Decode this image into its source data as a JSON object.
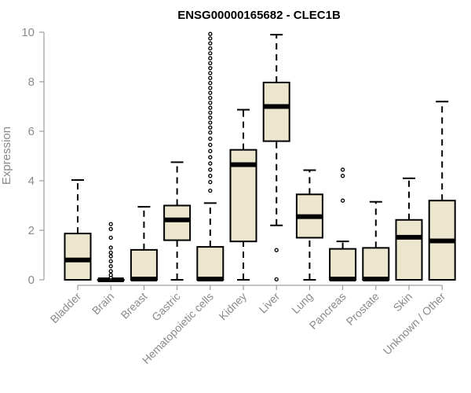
{
  "chart_data": {
    "type": "boxplot",
    "title": "ENSG00000165682 - CLEC1B",
    "xlabel": "",
    "ylabel": "Expression",
    "ylim": [
      0,
      10
    ],
    "yticks": [
      0,
      2,
      4,
      6,
      8,
      10
    ],
    "grid": false,
    "box_fill": "#ede6cf",
    "box_stroke": "#000000",
    "axis_color": "#8a8a8a",
    "categories": [
      "Bladder",
      "Brain",
      "Breast",
      "Gastric",
      "Hematopoietic cells",
      "Kidney",
      "Liver",
      "Lung",
      "Pancreas",
      "Prostate",
      "Skin",
      "Unknown / Other"
    ],
    "boxes": [
      {
        "min": 0,
        "q1": 0,
        "median": 0.8,
        "q3": 1.87,
        "max": 4.03,
        "outliers": []
      },
      {
        "min": 0,
        "q1": 0,
        "median": 0,
        "q3": 0,
        "max": 0,
        "outliers": [
          0.05,
          0.1,
          0.2,
          0.35,
          0.55,
          0.75,
          0.95,
          1.1,
          1.3,
          1.7,
          2.05,
          2.25
        ]
      },
      {
        "min": 0,
        "q1": 0,
        "median": 0.03,
        "q3": 1.21,
        "max": 2.95,
        "outliers": []
      },
      {
        "min": 0,
        "q1": 1.6,
        "median": 2.42,
        "q3": 3.0,
        "max": 4.75,
        "outliers": []
      },
      {
        "min": 0,
        "q1": 0,
        "median": 0.03,
        "q3": 1.33,
        "max": 3.1,
        "outliers": [
          3.6,
          3.95,
          4.2,
          4.45,
          4.7,
          4.95,
          5.2,
          5.45,
          5.7,
          5.95,
          6.15,
          6.35,
          6.55,
          6.75,
          6.95,
          7.15,
          7.35,
          7.55,
          7.75,
          7.95,
          8.15,
          8.35,
          8.55,
          8.75,
          8.95,
          9.15,
          9.35,
          9.55,
          9.75,
          9.93
        ]
      },
      {
        "min": 0,
        "q1": 1.55,
        "median": 4.65,
        "q3": 5.25,
        "max": 6.87,
        "outliers": []
      },
      {
        "min": 2.2,
        "q1": 5.6,
        "median": 7.0,
        "q3": 7.97,
        "max": 9.9,
        "outliers": [
          0.02,
          1.2
        ]
      },
      {
        "min": 0,
        "q1": 1.7,
        "median": 2.55,
        "q3": 3.45,
        "max": 4.43,
        "outliers": []
      },
      {
        "min": 0,
        "q1": 0,
        "median": 0.03,
        "q3": 1.25,
        "max": 1.55,
        "outliers": [
          3.2,
          4.2,
          4.45
        ]
      },
      {
        "min": 0,
        "q1": 0,
        "median": 0.03,
        "q3": 1.29,
        "max": 3.15,
        "outliers": []
      },
      {
        "min": 0,
        "q1": 0,
        "median": 1.72,
        "q3": 2.42,
        "max": 4.1,
        "outliers": []
      },
      {
        "min": 0,
        "q1": 0,
        "median": 1.57,
        "q3": 3.2,
        "max": 7.2,
        "outliers": []
      }
    ]
  }
}
